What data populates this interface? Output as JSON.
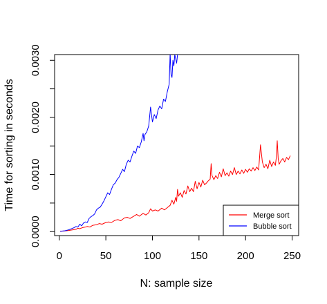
{
  "chart_data": {
    "type": "line",
    "title": "",
    "xlabel": "N: sample size",
    "ylabel": "Time for sorting in seconds",
    "xlim": [
      -5,
      257
    ],
    "ylim": [
      -7e-05,
      0.0031
    ],
    "x_ticks": [
      {
        "value": 0,
        "label": "0"
      },
      {
        "value": 50,
        "label": "50"
      },
      {
        "value": 100,
        "label": "100"
      },
      {
        "value": 150,
        "label": "150"
      },
      {
        "value": 200,
        "label": "200"
      },
      {
        "value": 250,
        "label": "250"
      }
    ],
    "y_ticks": [
      {
        "value": 0,
        "label": "0.0000"
      },
      {
        "value": 0.0005,
        "label": ""
      },
      {
        "value": 0.001,
        "label": "0.0010"
      },
      {
        "value": 0.0015,
        "label": ""
      },
      {
        "value": 0.002,
        "label": "0.0020"
      },
      {
        "value": 0.0025,
        "label": ""
      },
      {
        "value": 0.003,
        "label": "0.0030"
      }
    ],
    "grid": false,
    "legend": {
      "placement": "bottom-right"
    },
    "series": [
      {
        "name": "Merge sort",
        "color": "#ff0000",
        "points": [
          [
            1,
            5e-06
          ],
          [
            6,
            1.2e-05
          ],
          [
            10,
            2e-05
          ],
          [
            14,
            3e-05
          ],
          [
            18,
            4e-05
          ],
          [
            20,
            6e-05
          ],
          [
            22,
            5e-05
          ],
          [
            25,
            7e-05
          ],
          [
            28,
            8e-05
          ],
          [
            30,
            9e-05
          ],
          [
            33,
            8e-05
          ],
          [
            36,
            0.00011
          ],
          [
            40,
            0.00012
          ],
          [
            43,
            0.00014
          ],
          [
            46,
            0.00013
          ],
          [
            50,
            0.00016
          ],
          [
            53,
            0.00017
          ],
          [
            56,
            0.00016
          ],
          [
            60,
            0.0002
          ],
          [
            63,
            0.00021
          ],
          [
            66,
            0.00019
          ],
          [
            70,
            0.00024
          ],
          [
            73,
            0.00025
          ],
          [
            76,
            0.00023
          ],
          [
            80,
            0.00027
          ],
          [
            83,
            0.0003
          ],
          [
            86,
            0.00027
          ],
          [
            90,
            0.00032
          ],
          [
            93,
            0.00029
          ],
          [
            96,
            0.00033
          ],
          [
            98,
            0.0004
          ],
          [
            100,
            0.00036
          ],
          [
            103,
            0.00038
          ],
          [
            106,
            0.00036
          ],
          [
            110,
            0.00041
          ],
          [
            113,
            0.00038
          ],
          [
            116,
            0.00042
          ],
          [
            119,
            0.00046
          ],
          [
            121,
            0.00055
          ],
          [
            123,
            0.00048
          ],
          [
            125,
            0.0006
          ],
          [
            126,
            0.00053
          ],
          [
            127,
            0.00074
          ],
          [
            128,
            0.00062
          ],
          [
            130,
            0.00068
          ],
          [
            132,
            0.0006
          ],
          [
            134,
            0.00072
          ],
          [
            136,
            0.00066
          ],
          [
            138,
            0.0008
          ],
          [
            140,
            0.0007
          ],
          [
            142,
            0.00076
          ],
          [
            144,
            0.0007
          ],
          [
            146,
            0.00088
          ],
          [
            148,
            0.00075
          ],
          [
            150,
            0.00086
          ],
          [
            152,
            0.00078
          ],
          [
            154,
            0.0009
          ],
          [
            156,
            0.00082
          ],
          [
            158,
            0.00085
          ],
          [
            160,
            0.00089
          ],
          [
            162,
            0.00092
          ],
          [
            163,
            0.00119
          ],
          [
            164,
            0.00098
          ],
          [
            166,
            0.00091
          ],
          [
            168,
            0.00098
          ],
          [
            170,
            0.00093
          ],
          [
            172,
            0.00104
          ],
          [
            174,
            0.00096
          ],
          [
            176,
            0.0011
          ],
          [
            178,
            0.00098
          ],
          [
            180,
            0.00103
          ],
          [
            182,
            0.00097
          ],
          [
            184,
            0.00106
          ],
          [
            186,
            0.001
          ],
          [
            188,
            0.00112
          ],
          [
            190,
            0.001
          ],
          [
            192,
            0.00106
          ],
          [
            194,
            0.00101
          ],
          [
            196,
            0.00108
          ],
          [
            198,
            0.00102
          ],
          [
            200,
            0.00109
          ],
          [
            202,
            0.00104
          ],
          [
            204,
            0.0011
          ],
          [
            206,
            0.00106
          ],
          [
            208,
            0.00112
          ],
          [
            210,
            0.00107
          ],
          [
            212,
            0.00113
          ],
          [
            214,
            0.00108
          ],
          [
            216,
            0.00152
          ],
          [
            218,
            0.00122
          ],
          [
            220,
            0.00112
          ],
          [
            222,
            0.00118
          ],
          [
            224,
            0.0011
          ],
          [
            226,
            0.00125
          ],
          [
            228,
            0.00114
          ],
          [
            230,
            0.00122
          ],
          [
            232,
            0.00116
          ],
          [
            233,
            0.0013
          ],
          [
            234,
            0.00159
          ],
          [
            235,
            0.00128
          ],
          [
            236,
            0.00118
          ],
          [
            238,
            0.00124
          ],
          [
            240,
            0.00128
          ],
          [
            242,
            0.00122
          ],
          [
            244,
            0.0013
          ],
          [
            246,
            0.00126
          ],
          [
            248,
            0.00133
          ]
        ]
      },
      {
        "name": "Bubble sort",
        "color": "#0000ff",
        "points": [
          [
            1,
            5e-06
          ],
          [
            6,
            1.5e-05
          ],
          [
            10,
            3e-05
          ],
          [
            13,
            5e-05
          ],
          [
            16,
            7e-05
          ],
          [
            18,
            9e-05
          ],
          [
            20,
            8e-05
          ],
          [
            22,
            0.00013
          ],
          [
            24,
            0.0001
          ],
          [
            26,
            0.00015
          ],
          [
            28,
            0.00017
          ],
          [
            30,
            0.00016
          ],
          [
            32,
            0.00023
          ],
          [
            34,
            0.00026
          ],
          [
            36,
            0.00028
          ],
          [
            38,
            0.00031
          ],
          [
            40,
            0.00038
          ],
          [
            42,
            0.00041
          ],
          [
            44,
            0.00043
          ],
          [
            46,
            0.00048
          ],
          [
            48,
            0.00054
          ],
          [
            50,
            0.00061
          ],
          [
            52,
            0.00068
          ],
          [
            54,
            0.00065
          ],
          [
            56,
            0.00074
          ],
          [
            58,
            0.00082
          ],
          [
            60,
            0.00085
          ],
          [
            62,
            0.00091
          ],
          [
            64,
            0.00095
          ],
          [
            66,
            0.00102
          ],
          [
            68,
            0.00109
          ],
          [
            70,
            0.00105
          ],
          [
            72,
            0.00118
          ],
          [
            74,
            0.00125
          ],
          [
            76,
            0.00122
          ],
          [
            78,
            0.00132
          ],
          [
            80,
            0.00141
          ],
          [
            82,
            0.00137
          ],
          [
            84,
            0.0015
          ],
          [
            86,
            0.00147
          ],
          [
            88,
            0.00157
          ],
          [
            90,
            0.00172
          ],
          [
            91,
            0.00159
          ],
          [
            92,
            0.0017
          ],
          [
            94,
            0.00175
          ],
          [
            96,
            0.00185
          ],
          [
            98,
            0.00218
          ],
          [
            100,
            0.00192
          ],
          [
            102,
            0.00205
          ],
          [
            104,
            0.00198
          ],
          [
            106,
            0.00213
          ],
          [
            108,
            0.0022
          ],
          [
            110,
            0.00215
          ],
          [
            112,
            0.00232
          ],
          [
            114,
            0.00228
          ],
          [
            116,
            0.00245
          ],
          [
            118,
            0.00258
          ],
          [
            119,
            0.00312
          ],
          [
            120,
            0.00275
          ],
          [
            121,
            0.0027
          ],
          [
            122,
            0.003
          ],
          [
            123,
            0.0029
          ],
          [
            124,
            0.0031
          ],
          [
            126,
            0.00295
          ],
          [
            127,
            0.0031
          ],
          [
            128,
            0.0031
          ]
        ]
      }
    ]
  }
}
